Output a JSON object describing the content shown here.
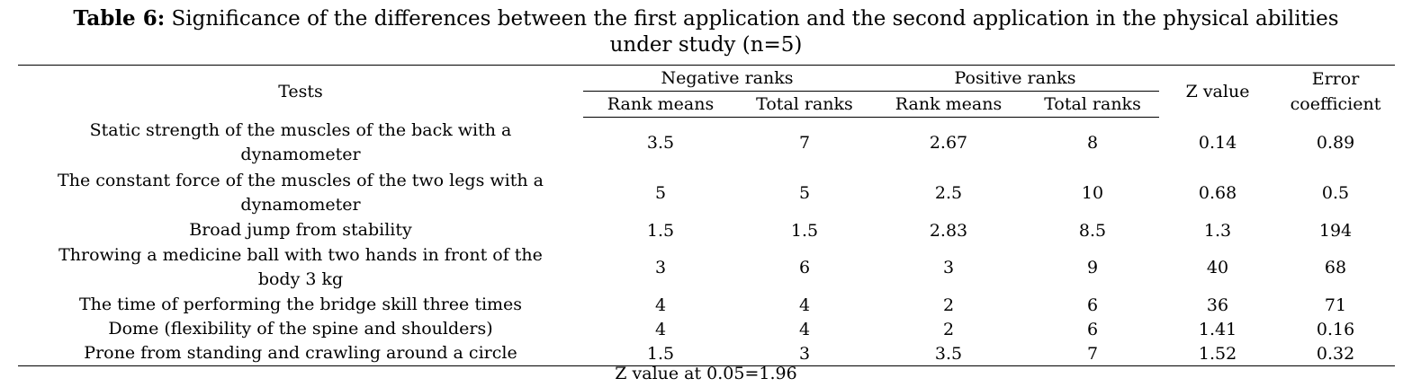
{
  "caption": {
    "label": "Table 6:",
    "text_line1": " Significance of the differences between the first application and the second application in the physical abilities",
    "text_line2": "under study (n=5)"
  },
  "table": {
    "headers": {
      "tests": "Tests",
      "negative_ranks": "Negative ranks",
      "positive_ranks": "Positive ranks",
      "z_value": "Z value",
      "error_coefficient_line1": "Error",
      "error_coefficient_line2": "coefficient",
      "neg_rank_means": "Rank means",
      "neg_total_ranks": "Total ranks",
      "pos_rank_means": "Rank means",
      "pos_total_ranks": "Total ranks"
    },
    "rows": [
      {
        "test_line1": "Static strength of the muscles of the back with a",
        "test_line2": "dynamometer",
        "neg_rank_means": "3.5",
        "neg_total_ranks": "7",
        "pos_rank_means": "2.67",
        "pos_total_ranks": "8",
        "z_value": "0.14",
        "error_coefficient": "0.89"
      },
      {
        "test_line1": "The constant force of the muscles of the two legs with a",
        "test_line2": "dynamometer",
        "neg_rank_means": "5",
        "neg_total_ranks": "5",
        "pos_rank_means": "2.5",
        "pos_total_ranks": "10",
        "z_value": "0.68",
        "error_coefficient": "0.5"
      },
      {
        "test_line1": "Broad jump from stability",
        "test_line2": "",
        "neg_rank_means": "1.5",
        "neg_total_ranks": "1.5",
        "pos_rank_means": "2.83",
        "pos_total_ranks": "8.5",
        "z_value": "1.3",
        "error_coefficient": "194"
      },
      {
        "test_line1": "Throwing a medicine ball with two hands in front of the",
        "test_line2": "body 3 kg",
        "neg_rank_means": "3",
        "neg_total_ranks": "6",
        "pos_rank_means": "3",
        "pos_total_ranks": "9",
        "z_value": "40",
        "error_coefficient": "68"
      },
      {
        "test_line1": "The time of performing the bridge skill three times",
        "test_line2": "",
        "neg_rank_means": "4",
        "neg_total_ranks": "4",
        "pos_rank_means": "2",
        "pos_total_ranks": "6",
        "z_value": "36",
        "error_coefficient": "71"
      },
      {
        "test_line1": "Dome (flexibility of the spine and shoulders)",
        "test_line2": "",
        "neg_rank_means": "4",
        "neg_total_ranks": "4",
        "pos_rank_means": "2",
        "pos_total_ranks": "6",
        "z_value": "1.41",
        "error_coefficient": "0.16"
      },
      {
        "test_line1": "Prone from standing and crawling around a circle",
        "test_line2": "",
        "neg_rank_means": "1.5",
        "neg_total_ranks": "3",
        "pos_rank_means": "3.5",
        "pos_total_ranks": "7",
        "z_value": "1.52",
        "error_coefficient": "0.32"
      }
    ]
  },
  "note": "Z value at 0.05=1.96"
}
